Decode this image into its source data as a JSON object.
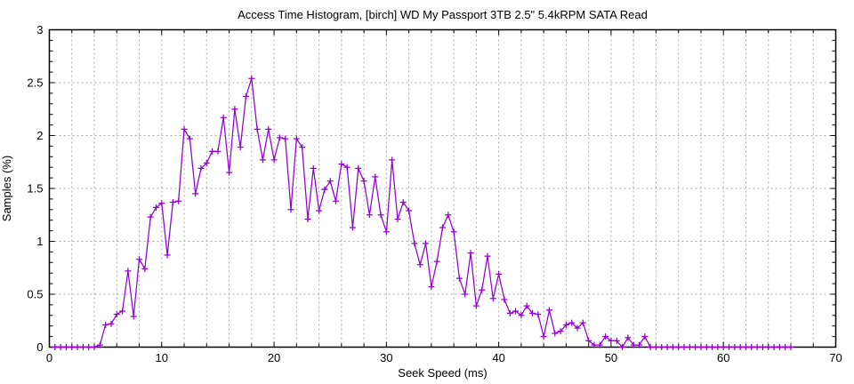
{
  "chart_data": {
    "type": "line",
    "title": "Access Time Histogram, [birch] WD My Passport 3TB 2.5\" 5.4kRPM SATA Read",
    "xlabel": "Seek Speed (ms)",
    "ylabel": "Samples (%)",
    "xlim": [
      0,
      70
    ],
    "ylim": [
      0,
      3
    ],
    "xticks": [
      0,
      10,
      20,
      30,
      40,
      50,
      60,
      70
    ],
    "yticks": [
      0,
      0.5,
      1,
      1.5,
      2,
      2.5,
      3
    ],
    "grid": {
      "x_step": 2,
      "y_step": 0.5,
      "style": "dashed",
      "x_minor_tick_step": 2,
      "y_minor_tick_step": 0.1
    },
    "legend": "none",
    "marker": "plus",
    "x_start": 0.5,
    "x_step": 0.5,
    "values": [
      0,
      0,
      0,
      0,
      0,
      0,
      0,
      0,
      0.02,
      0.21,
      0.22,
      0.31,
      0.34,
      0.72,
      0.29,
      0.83,
      0.74,
      1.23,
      1.32,
      1.36,
      0.87,
      1.37,
      1.38,
      2.06,
      1.97,
      1.45,
      1.69,
      1.74,
      1.85,
      1.85,
      2.17,
      1.65,
      2.25,
      1.89,
      2.37,
      2.54,
      2.06,
      1.77,
      2.06,
      1.77,
      1.98,
      1.97,
      1.3,
      1.97,
      1.89,
      1.21,
      1.69,
      1.29,
      1.49,
      1.57,
      1.38,
      1.73,
      1.7,
      1.13,
      1.69,
      1.57,
      1.25,
      1.61,
      1.25,
      1.09,
      1.77,
      1.21,
      1.37,
      1.29,
      0.98,
      0.78,
      0.98,
      0.57,
      0.81,
      1.13,
      1.25,
      1.09,
      0.65,
      0.5,
      0.89,
      0.39,
      0.54,
      0.86,
      0.46,
      0.69,
      0.45,
      0.32,
      0.34,
      0.3,
      0.39,
      0.32,
      0.31,
      0.1,
      0.35,
      0.13,
      0.15,
      0.21,
      0.23,
      0.18,
      0.23,
      0.06,
      0.02,
      0.02,
      0.1,
      0.06,
      0.06,
      0.0,
      0.09,
      0.02,
      0.02,
      0.1,
      0.0,
      0,
      0,
      0,
      0,
      0,
      0,
      0,
      0,
      0,
      0,
      0,
      0,
      0,
      0,
      0,
      0,
      0,
      0,
      0,
      0,
      0,
      0,
      0,
      0,
      0
    ],
    "colors": {
      "line": "#9400d3",
      "grid": "#aaaaaa",
      "border": "#000000",
      "background": "#ffffff",
      "text": "#000000"
    }
  }
}
